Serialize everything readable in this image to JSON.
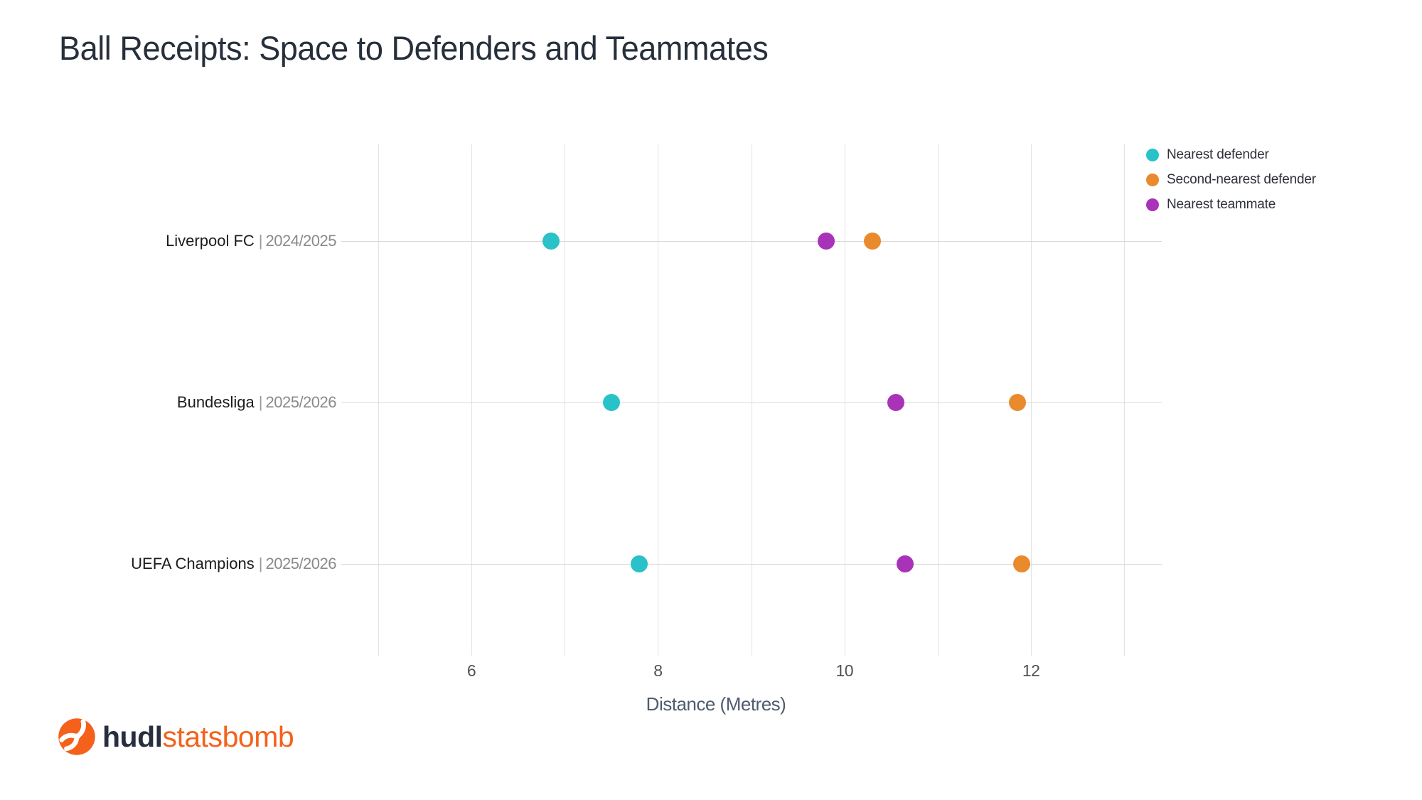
{
  "title": "Ball Receipts: Space to Defenders and Teammates",
  "chart_data": {
    "type": "scatter",
    "subtype": "horizontal-dot-plot",
    "title": "Ball Receipts: Space to Defenders and Teammates",
    "xlabel": "Distance (Metres)",
    "ylabel": "",
    "xlim": [
      5,
      13
    ],
    "x_ticks": [
      6,
      8,
      10,
      12
    ],
    "x_gridlines": [
      5,
      6,
      7,
      8,
      9,
      10,
      11,
      12,
      13
    ],
    "grid": true,
    "legend_position": "top-right",
    "categories": [
      {
        "team": "Liverpool FC",
        "separator": "|",
        "season": "2024/2025"
      },
      {
        "team": "Bundesliga",
        "separator": "|",
        "season": "2025/2026"
      },
      {
        "team": "UEFA Champions",
        "separator": "|",
        "season": "2025/2026"
      }
    ],
    "series": [
      {
        "name": "Nearest defender",
        "color": "#29c2c8",
        "values": [
          6.85,
          7.5,
          7.8
        ]
      },
      {
        "name": "Second-nearest defender",
        "color": "#e98a2d",
        "values": [
          10.3,
          11.85,
          11.9
        ]
      },
      {
        "name": "Nearest teammate",
        "color": "#a833b9",
        "values": [
          9.8,
          10.55,
          10.65
        ]
      }
    ]
  },
  "colors": {
    "title_text": "#262f3b",
    "axis_label_text": "#4e5d6e",
    "tick_text": "#4d5257",
    "category_team_text": "#1c1c1c",
    "category_season_text": "#8a8a8a",
    "gridline_vertical": "#e3e3e3",
    "gridline_horizontal": "#d9d9d9",
    "background": "#ffffff",
    "logo_navy": "#272e3e",
    "logo_orange": "#f4611b"
  },
  "logo": {
    "brand_bold": "hudl",
    "brand_light": "statsbomb"
  }
}
